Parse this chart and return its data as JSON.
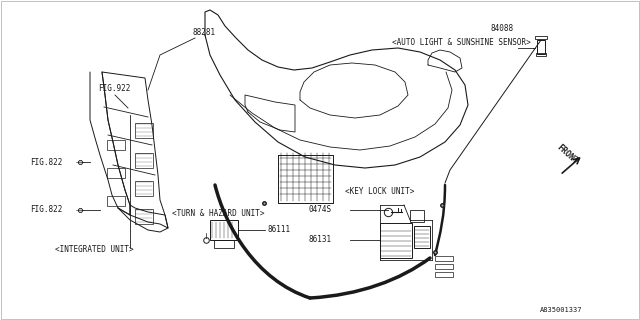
{
  "bg_color": "#ffffff",
  "line_color": "#1a1a1a",
  "text_color": "#1a1a1a",
  "part_number_diagram": "A835001337",
  "labels": {
    "fig922_top": "FIG.922",
    "fig822_mid": "FIG.822",
    "fig822_bot": "FIG.822",
    "part_88281": "88281",
    "integrated_unit": "<INTEGRATED UNIT>",
    "part_84088": "84088",
    "auto_light": "<AUTO LIGHT & SUNSHINE SENSOR>",
    "part_86111": "86111",
    "turn_hazard": "<TURN & HAZARD UNIT>",
    "part_86131": "86131",
    "part_0474S": "0474S",
    "key_lock": "<KEY LOCK UNIT>",
    "front": "FRONT"
  }
}
